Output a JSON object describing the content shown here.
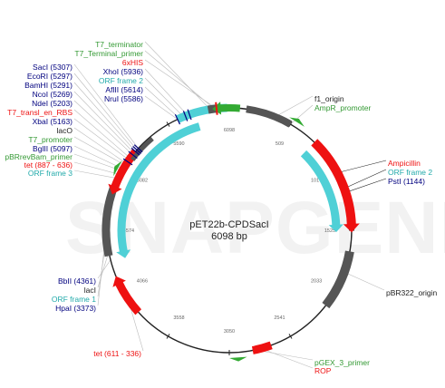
{
  "map": {
    "name": "pET22b-CPDSacI",
    "length": "6098 bp",
    "watermark": "SNAPGENE"
  },
  "colors": {
    "red": "#ee1111",
    "navy": "#00007f",
    "green": "#339933",
    "cyan": "#22aaaa",
    "black": "#222222",
    "orf": "#4fd0d6",
    "feature_gray": "#555555",
    "marker_green": "#33aa33"
  },
  "ticks": [
    "6098",
    "509",
    "1017",
    "1525",
    "2033",
    "2541",
    "3050",
    "3558",
    "4066",
    "4574",
    "5082",
    "5590"
  ],
  "labels": {
    "t7_terminator": "T7_terminator",
    "t7_terminal_primer": "T7_Terminal_primer",
    "his6": "6xHIS",
    "xhoi": "XhoI (5936)",
    "orf2_top": "ORF frame 2",
    "afiii": "AflII (5614)",
    "nrui": "NruI (5586)",
    "saci": "SacI (5307)",
    "ecori": "EcoRI (5297)",
    "bamhi": "BamHI (5291)",
    "ncoi": "NcoI (5269)",
    "ndei": "NdeI (5203)",
    "t7_rbs": "T7_transl_en_RBS",
    "xbai": "XbaI (5163)",
    "laco": "lacO",
    "t7_promoter": "T7_promoter",
    "bglii": "BglII (5097)",
    "pbrrevbam": "pBRrevBam_primer",
    "tet_top": "tet (887 - 636)",
    "orf3": "ORF frame 3",
    "f1_origin": "f1_origin",
    "ampr_promoter": "AmpR_promoter",
    "ampicillin": "Ampicillin",
    "orf2_right": "ORF frame 2",
    "psti": "PstI (1144)",
    "pbr322": "pBR322_origin",
    "bbli": "BbII (4361)",
    "laci": "lacI",
    "orf1": "ORF frame 1",
    "hpai": "HpaI (3373)",
    "tet_bottom": "tet (611 - 336)",
    "pgex3": "pGEX_3_primer",
    "rop": "ROP"
  }
}
